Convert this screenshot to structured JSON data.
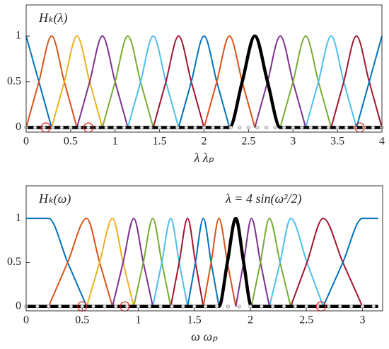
{
  "chart_data": [
    {
      "type": "line",
      "annotation": "Hₖ(λ)",
      "xlabel": "λ   λₚ",
      "xlim": [
        0,
        4
      ],
      "ylim": [
        -0.05,
        1.34
      ],
      "xticks": [
        0,
        0.5,
        1,
        1.5,
        2,
        2.5,
        3,
        3.5,
        4
      ],
      "yticks": [
        0,
        0.5,
        1
      ],
      "series": [
        {
          "color": "#0072BD",
          "x": [
            0,
            0.143,
            0.286
          ],
          "values": [
            1,
            0.5,
            0
          ]
        },
        {
          "color": "#D95319",
          "x": [
            0,
            0.143,
            0.286,
            0.429,
            0.571
          ],
          "values": [
            0,
            0.5,
            1,
            0.5,
            0
          ]
        },
        {
          "color": "#EDB120",
          "x": [
            0.286,
            0.429,
            0.571,
            0.714,
            0.857
          ],
          "values": [
            0,
            0.5,
            1,
            0.5,
            0
          ]
        },
        {
          "color": "#7E2F8E",
          "x": [
            0.571,
            0.714,
            0.857,
            1.0,
            1.143
          ],
          "values": [
            0,
            0.5,
            1,
            0.5,
            0
          ]
        },
        {
          "color": "#77AC30",
          "x": [
            0.857,
            1.0,
            1.143,
            1.286,
            1.429
          ],
          "values": [
            0,
            0.5,
            1,
            0.5,
            0
          ]
        },
        {
          "color": "#4DBEEE",
          "x": [
            1.143,
            1.286,
            1.429,
            1.571,
            1.714
          ],
          "values": [
            0,
            0.5,
            1,
            0.5,
            0
          ]
        },
        {
          "color": "#A2142F",
          "x": [
            1.429,
            1.571,
            1.714,
            1.857,
            2.0
          ],
          "values": [
            0,
            0.5,
            1,
            0.5,
            0
          ]
        },
        {
          "color": "#0072BD",
          "x": [
            1.714,
            1.857,
            2.0,
            2.143,
            2.286
          ],
          "values": [
            0,
            0.5,
            1,
            0.5,
            0
          ]
        },
        {
          "color": "#D95319",
          "x": [
            2.0,
            2.143,
            2.286,
            2.429,
            2.571
          ],
          "values": [
            0,
            0.5,
            1,
            0.5,
            0
          ]
        },
        {
          "color": "#7E2F8E",
          "x": [
            2.571,
            2.714,
            2.857,
            3.0,
            3.143
          ],
          "values": [
            0,
            0.5,
            1,
            0.5,
            0
          ]
        },
        {
          "color": "#77AC30",
          "x": [
            2.857,
            3.0,
            3.143,
            3.286,
            3.429
          ],
          "values": [
            0,
            0.5,
            1,
            0.5,
            0
          ]
        },
        {
          "color": "#4DBEEE",
          "x": [
            3.143,
            3.286,
            3.429,
            3.571,
            3.714
          ],
          "values": [
            0,
            0.5,
            1,
            0.5,
            0
          ]
        },
        {
          "color": "#A2142F",
          "x": [
            3.429,
            3.571,
            3.714,
            3.857,
            4.0
          ],
          "values": [
            0,
            0.5,
            1,
            0.5,
            0
          ]
        },
        {
          "color": "#0072BD",
          "x": [
            3.714,
            3.857,
            4.0
          ],
          "values": [
            0,
            0.5,
            1
          ]
        },
        {
          "color": "#000000",
          "x": [
            0,
            2.286,
            2.429,
            2.571,
            2.714,
            2.857,
            4
          ],
          "values": [
            0,
            0,
            0.5,
            1,
            0.5,
            0,
            0
          ]
        }
      ],
      "samples": [
        0,
        0.1,
        0.2,
        0.3,
        0.4,
        0.5,
        0.6,
        0.7,
        0.8,
        0.9,
        1,
        1.1,
        1.2,
        1.3,
        1.4,
        1.5,
        1.6,
        1.7,
        1.8,
        1.9,
        2,
        2.1,
        2.2,
        2.3,
        2.4,
        2.5,
        2.6,
        2.7,
        2.8,
        2.9,
        3,
        3.1,
        3.2,
        3.3,
        3.4,
        3.5,
        3.6,
        3.7,
        3.8,
        3.9,
        4
      ],
      "highlights": [
        0.22,
        0.7,
        3.75
      ]
    },
    {
      "type": "line",
      "annotation": "Hₖ(ω)",
      "annotation2": "λ = 4 sin(ω²/2)",
      "xlabel": "ω   ωₚ",
      "xlim": [
        0,
        3.18
      ],
      "ylim": [
        -0.05,
        1.37
      ],
      "xticks": [
        0,
        0.5,
        1,
        1.5,
        2,
        2.5,
        3
      ],
      "yticks": [
        0,
        0.5,
        1
      ],
      "series": [
        {
          "color": "#0072BD",
          "x": [
            0,
            0.2,
            0.37,
            0.54
          ],
          "values": [
            1,
            1,
            0.5,
            0
          ]
        },
        {
          "color": "#D95319",
          "x": [
            0.2,
            0.37,
            0.54,
            0.655,
            0.77
          ],
          "values": [
            0,
            0.5,
            1,
            0.5,
            0
          ]
        },
        {
          "color": "#EDB120",
          "x": [
            0.54,
            0.655,
            0.77,
            0.865,
            0.96
          ],
          "values": [
            0,
            0.5,
            1,
            0.5,
            0
          ]
        },
        {
          "color": "#7E2F8E",
          "x": [
            0.77,
            0.865,
            0.96,
            1.045,
            1.13
          ],
          "values": [
            0,
            0.5,
            1,
            0.5,
            0
          ]
        },
        {
          "color": "#77AC30",
          "x": [
            0.96,
            1.045,
            1.13,
            1.21,
            1.29
          ],
          "values": [
            0,
            0.5,
            1,
            0.5,
            0
          ]
        },
        {
          "color": "#4DBEEE",
          "x": [
            1.13,
            1.21,
            1.29,
            1.365,
            1.44
          ],
          "values": [
            0,
            0.5,
            1,
            0.5,
            0
          ]
        },
        {
          "color": "#A2142F",
          "x": [
            1.29,
            1.365,
            1.44,
            1.51,
            1.58
          ],
          "values": [
            0,
            0.5,
            1,
            0.5,
            0
          ]
        },
        {
          "color": "#0072BD",
          "x": [
            1.44,
            1.51,
            1.58,
            1.65,
            1.72
          ],
          "values": [
            0,
            0.5,
            1,
            0.5,
            0
          ]
        },
        {
          "color": "#D95319",
          "x": [
            1.58,
            1.65,
            1.72,
            1.795,
            1.87
          ],
          "values": [
            0,
            0.5,
            1,
            0.5,
            0
          ]
        },
        {
          "color": "#7E2F8E",
          "x": [
            1.87,
            1.94,
            2.01,
            2.09,
            2.17
          ],
          "values": [
            0,
            0.5,
            1,
            0.5,
            0
          ]
        },
        {
          "color": "#77AC30",
          "x": [
            2.01,
            2.09,
            2.17,
            2.265,
            2.36
          ],
          "values": [
            0,
            0.5,
            1,
            0.5,
            0
          ]
        },
        {
          "color": "#4DBEEE",
          "x": [
            2.17,
            2.265,
            2.36,
            2.505,
            2.65
          ],
          "values": [
            0,
            0.5,
            1,
            0.5,
            0
          ]
        },
        {
          "color": "#A2142F",
          "x": [
            2.36,
            2.505,
            2.65,
            2.825,
            3.0
          ],
          "values": [
            0,
            0.5,
            1,
            0.5,
            0
          ]
        },
        {
          "color": "#0072BD",
          "x": [
            2.65,
            2.825,
            3.0,
            3.14
          ],
          "values": [
            0,
            0.5,
            1,
            1
          ]
        },
        {
          "color": "#000000",
          "x": [
            0,
            1.72,
            1.795,
            1.87,
            1.94,
            2.01,
            3.14
          ],
          "values": [
            0,
            0,
            0.5,
            1,
            0.5,
            0,
            0
          ]
        }
      ],
      "samples": [
        0,
        0.1,
        0.2,
        0.3,
        0.4,
        0.5,
        0.6,
        0.7,
        0.8,
        0.9,
        1,
        1.1,
        1.2,
        1.3,
        1.4,
        1.5,
        1.6,
        1.7,
        1.8,
        1.9,
        2,
        2.1,
        2.2,
        2.3,
        2.4,
        2.5,
        2.6,
        2.7,
        2.8,
        2.9,
        3,
        3.1
      ],
      "highlights": [
        0.5,
        0.88,
        2.63
      ]
    }
  ]
}
